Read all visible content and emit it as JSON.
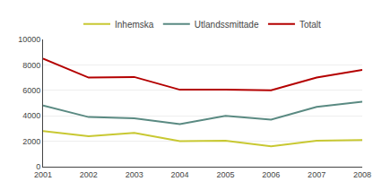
{
  "chart_data": {
    "type": "line",
    "x": [
      2001,
      2002,
      2003,
      2004,
      2005,
      2006,
      2007,
      2008
    ],
    "series": [
      {
        "name": "Inhemska",
        "color": "#c8c832",
        "values": [
          2800,
          2400,
          2650,
          2000,
          2050,
          1600,
          2050,
          2100
        ]
      },
      {
        "name": "Utlandssmittade",
        "color": "#5a8a82",
        "values": [
          4800,
          3900,
          3800,
          3350,
          4000,
          3700,
          4700,
          5100
        ]
      },
      {
        "name": "Totalt",
        "color": "#b40000",
        "values": [
          8500,
          7000,
          7050,
          6050,
          6050,
          6000,
          7000,
          7600
        ]
      }
    ],
    "xlim": [
      2001,
      2008
    ],
    "xticks": [
      2001,
      2002,
      2003,
      2004,
      2005,
      2006,
      2007,
      2008
    ],
    "ylim": [
      0,
      10000
    ],
    "yticks": [
      0,
      2000,
      4000,
      6000,
      8000,
      10000
    ],
    "grid": true,
    "legend": "top"
  }
}
